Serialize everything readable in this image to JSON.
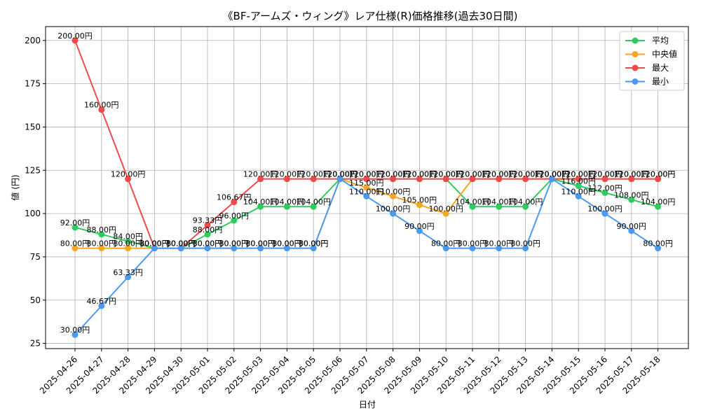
{
  "chart_data": {
    "type": "line",
    "title": "《BF-アームズ・ウィング》レア仕様(R)価格推移(過去30日間)",
    "xlabel": "日付",
    "ylabel": "値 (円)",
    "ylim": [
      22,
      208
    ],
    "yticks": [
      25,
      50,
      75,
      100,
      125,
      150,
      175,
      200
    ],
    "grid": true,
    "legend_position": "top-right",
    "label_suffix": "円",
    "categories": [
      "2025-04-26",
      "2025-04-27",
      "2025-04-28",
      "2025-04-29",
      "2025-04-30",
      "2025-05-01",
      "2025-05-02",
      "2025-05-03",
      "2025-05-04",
      "2025-05-05",
      "2025-05-06",
      "2025-05-07",
      "2025-05-08",
      "2025-05-09",
      "2025-05-10",
      "2025-05-11",
      "2025-05-12",
      "2025-05-13",
      "2025-05-14",
      "2025-05-15",
      "2025-05-16",
      "2025-05-17",
      "2025-05-18"
    ],
    "series": [
      {
        "name": "平均",
        "color": "#2ecc5f",
        "values": [
          92.0,
          88.0,
          84.0,
          80.0,
          80.0,
          88.0,
          96.0,
          104.0,
          104.0,
          104.0,
          120.0,
          120.0,
          120.0,
          120.0,
          120.0,
          104.0,
          104.0,
          104.0,
          120.0,
          116.0,
          112.0,
          108.0,
          104.0
        ]
      },
      {
        "name": "中央値",
        "color": "#f5a623",
        "values": [
          80.0,
          80.0,
          80.0,
          80.0,
          80.0,
          80.0,
          80.0,
          80.0,
          80.0,
          80.0,
          120.0,
          115.0,
          110.0,
          105.0,
          100.0,
          120.0,
          120.0,
          120.0,
          120.0,
          120.0,
          120.0,
          120.0,
          120.0
        ]
      },
      {
        "name": "最大",
        "color": "#f04a4a",
        "values": [
          200.0,
          160.0,
          120.0,
          80.0,
          80.0,
          93.33,
          106.67,
          120.0,
          120.0,
          120.0,
          120.0,
          120.0,
          120.0,
          120.0,
          120.0,
          120.0,
          120.0,
          120.0,
          120.0,
          120.0,
          120.0,
          120.0,
          120.0
        ]
      },
      {
        "name": "最小",
        "color": "#4a9af0",
        "values": [
          30.0,
          46.67,
          63.33,
          80.0,
          80.0,
          80.0,
          80.0,
          80.0,
          80.0,
          80.0,
          120.0,
          110.0,
          100.0,
          90.0,
          80.0,
          80.0,
          80.0,
          80.0,
          120.0,
          110.0,
          100.0,
          90.0,
          80.0
        ]
      }
    ]
  }
}
